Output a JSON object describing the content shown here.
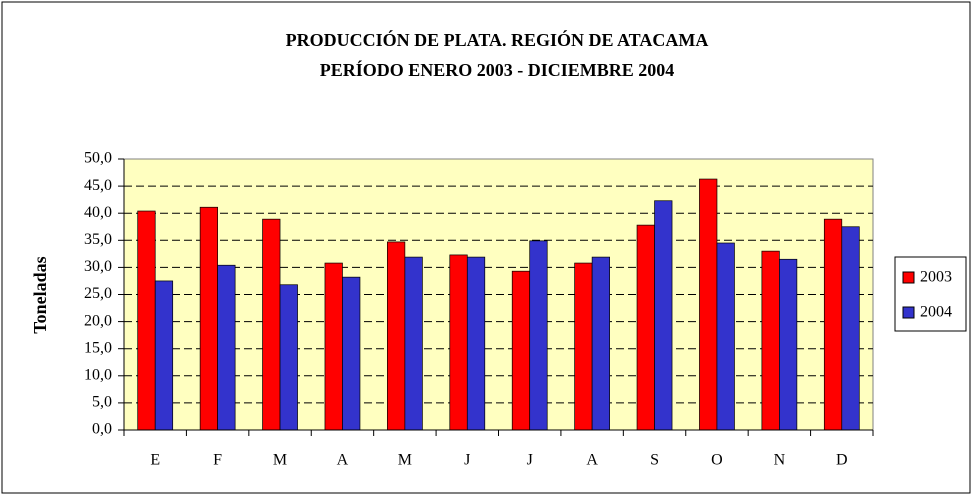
{
  "chart_data": {
    "type": "bar",
    "title": "PRODUCCIÓN DE PLATA.  REGIÓN DE ATACAMA",
    "subtitle": "PERÍODO ENERO 2003 - DICIEMBRE 2004",
    "y_label": "Toneladas",
    "categories": [
      "E",
      "F",
      "M",
      "A",
      "M",
      "J",
      "J",
      "A",
      "S",
      "O",
      "N",
      "D"
    ],
    "series": [
      {
        "name": "2003",
        "color": "#ff0000",
        "values": [
          40.4,
          41.1,
          38.9,
          30.8,
          34.7,
          32.3,
          29.3,
          30.8,
          37.8,
          46.3,
          33.0,
          38.9
        ]
      },
      {
        "name": "2004",
        "color": "#3333cc",
        "values": [
          27.5,
          30.4,
          26.8,
          28.2,
          31.9,
          31.9,
          34.9,
          31.9,
          42.3,
          34.5,
          31.5,
          37.5
        ]
      }
    ],
    "ylim": [
      0,
      50
    ],
    "yticks": [
      {
        "value": 0,
        "label": "0,0"
      },
      {
        "value": 5,
        "label": "5,0"
      },
      {
        "value": 10,
        "label": "10,0"
      },
      {
        "value": 15,
        "label": "15,0"
      },
      {
        "value": 20,
        "label": "20,0"
      },
      {
        "value": 25,
        "label": "25,0"
      },
      {
        "value": 30,
        "label": "30,0"
      },
      {
        "value": 35,
        "label": "35,0"
      },
      {
        "value": 40,
        "label": "40,0"
      },
      {
        "value": 45,
        "label": "45,0"
      },
      {
        "value": 50,
        "label": "50,0"
      }
    ],
    "grid": true,
    "legend": "right"
  }
}
